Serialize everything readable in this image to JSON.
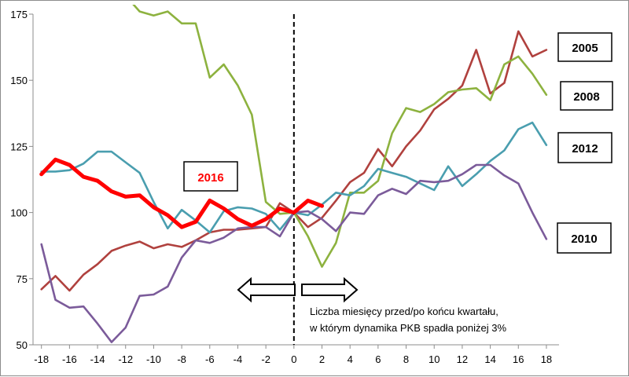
{
  "chart_data": {
    "type": "line",
    "x": [
      -18,
      -17,
      -16,
      -15,
      -14,
      -13,
      -12,
      -11,
      -10,
      -9,
      -8,
      -7,
      -6,
      -5,
      -4,
      -3,
      -2,
      -1,
      0,
      1,
      2,
      3,
      4,
      5,
      6,
      7,
      8,
      9,
      10,
      11,
      12,
      13,
      14,
      15,
      16,
      17,
      18
    ],
    "xticks": [
      "-18",
      "-16",
      "-14",
      "-12",
      "-10",
      "-8",
      "-6",
      "-4",
      "-2",
      "0",
      "2",
      "4",
      "6",
      "8",
      "10",
      "12",
      "14",
      "16",
      "18"
    ],
    "xtick_values": [
      -18,
      -16,
      -14,
      -12,
      -10,
      -8,
      -6,
      -4,
      -2,
      0,
      2,
      4,
      6,
      8,
      10,
      12,
      14,
      16,
      18
    ],
    "yticks": [
      "50",
      "75",
      "100",
      "125",
      "150",
      "175"
    ],
    "ytick_values": [
      50,
      75,
      100,
      125,
      150,
      175
    ],
    "xlim": [
      -18.6,
      18.9
    ],
    "ylim": [
      50,
      175
    ],
    "grid": false,
    "reference_line_x": 0,
    "series": [
      {
        "name": "2005",
        "color": "#b0413e",
        "x": [
          -18,
          -17,
          -16,
          -15,
          -14,
          -13,
          -12,
          -11,
          -10,
          -9,
          -8,
          -7,
          -6,
          -5,
          -4,
          -3,
          -2,
          -1,
          0,
          1,
          2,
          3,
          4,
          5,
          6,
          7,
          8,
          9,
          10,
          11,
          12,
          13,
          14,
          15,
          16,
          17,
          18
        ],
        "values": [
          71,
          76,
          70.5,
          76.5,
          80.5,
          85.5,
          87.5,
          89,
          86.5,
          88,
          87,
          89.5,
          92.5,
          93.5,
          93.5,
          94,
          94.5,
          103.5,
          100,
          94.5,
          98,
          104.5,
          111.5,
          115,
          124,
          117.5,
          125,
          131,
          139,
          143,
          148,
          161.5,
          145,
          149,
          168.5,
          159,
          161.5
        ]
      },
      {
        "name": "2008",
        "color": "#8db23f",
        "x": [
          -13,
          -12,
          -11,
          -10,
          -9,
          -8,
          -7,
          -6,
          -5,
          -4,
          -3,
          -2,
          -1,
          0,
          1,
          2,
          3,
          4,
          5,
          6,
          7,
          8,
          9,
          10,
          11,
          12,
          13,
          14,
          15,
          16,
          17,
          18
        ],
        "values": [
          190,
          182,
          176,
          174.5,
          176,
          171.5,
          171.5,
          151,
          156,
          148,
          137,
          104,
          99.5,
          100,
          91,
          79.5,
          88.5,
          107.5,
          107.5,
          112,
          130,
          139.5,
          138,
          141,
          145.5,
          146.5,
          147,
          142.5,
          156,
          159,
          152.5,
          144.5
        ]
      },
      {
        "name": "2012",
        "color": "#4a9eaf",
        "x": [
          -18,
          -17,
          -16,
          -15,
          -14,
          -13,
          -12,
          -11,
          -10,
          -9,
          -8,
          -7,
          -6,
          -5,
          -4,
          -3,
          -2,
          -1,
          0,
          1,
          2,
          3,
          4,
          5,
          6,
          7,
          8,
          9,
          10,
          11,
          12,
          13,
          14,
          15,
          16,
          17,
          18
        ],
        "values": [
          115.5,
          115.5,
          116,
          118.5,
          123,
          123,
          119,
          115,
          104,
          94,
          101,
          97,
          92.5,
          100.5,
          102,
          101.5,
          99.5,
          93.5,
          100,
          99,
          103,
          107.5,
          106.5,
          110,
          116.5,
          115,
          113.5,
          111,
          108.5,
          117.5,
          110,
          114.5,
          119.5,
          123.5,
          131.5,
          134,
          125.5
        ]
      },
      {
        "name": "2010",
        "color": "#7b5b9a",
        "x": [
          -18,
          -17,
          -16,
          -15,
          -14,
          -13,
          -12,
          -11,
          -10,
          -9,
          -8,
          -7,
          -6,
          -5,
          -4,
          -3,
          -2,
          -1,
          0,
          1,
          2,
          3,
          4,
          5,
          6,
          7,
          8,
          9,
          10,
          11,
          12,
          13,
          14,
          15,
          16,
          17,
          18
        ],
        "values": [
          88,
          67,
          64,
          64.5,
          58,
          51,
          56.5,
          68.5,
          69,
          72,
          83,
          89.5,
          88.5,
          90.5,
          94,
          94.5,
          94.5,
          91,
          100,
          100.5,
          97.5,
          93,
          100,
          99.5,
          106.5,
          109,
          107,
          112,
          111.5,
          112,
          114.5,
          118,
          118,
          114,
          111,
          100,
          90
        ]
      },
      {
        "name": "2016",
        "color": "#ff0000",
        "x": [
          -18,
          -17,
          -16,
          -15,
          -14,
          -13,
          -12,
          -11,
          -10,
          -9,
          -8,
          -7,
          -6,
          -5,
          -4,
          -3,
          -2,
          -1,
          0,
          1,
          2
        ],
        "values": [
          114.5,
          120,
          118,
          113.5,
          112,
          108,
          106,
          106.5,
          102,
          99,
          94.5,
          96.5,
          104.5,
          101.5,
          97.5,
          95,
          97.5,
          101.5,
          100,
          104.5,
          102.5
        ]
      }
    ],
    "series_labels": [
      {
        "name": "2005",
        "text": "2005",
        "color": "#000000",
        "anchor_y": 160.5
      },
      {
        "name": "2008",
        "text": "2008",
        "color": "#000000",
        "anchor_y": 144
      },
      {
        "name": "2012",
        "text": "2012",
        "color": "#000000",
        "anchor_y": 125
      },
      {
        "name": "2010",
        "text": "2010",
        "color": "#000000",
        "anchor_y": 90
      },
      {
        "name": "2016",
        "text": "2016",
        "color": "#ff0000",
        "anchor_y": 113
      }
    ],
    "annotation": {
      "line1": "Liczba miesięcy przed/po końcu kwartału,",
      "line2": "w którym dynamika PKB spadła poniżej 3%"
    }
  },
  "colors": {
    "axis": "#8c8c8c",
    "reference_line": "#000000",
    "arrow_fill": "#ffffff",
    "arrow_stroke": "#000000"
  },
  "icons": {
    "left_arrow": "left-arrow-icon",
    "right_arrow": "right-arrow-icon"
  }
}
